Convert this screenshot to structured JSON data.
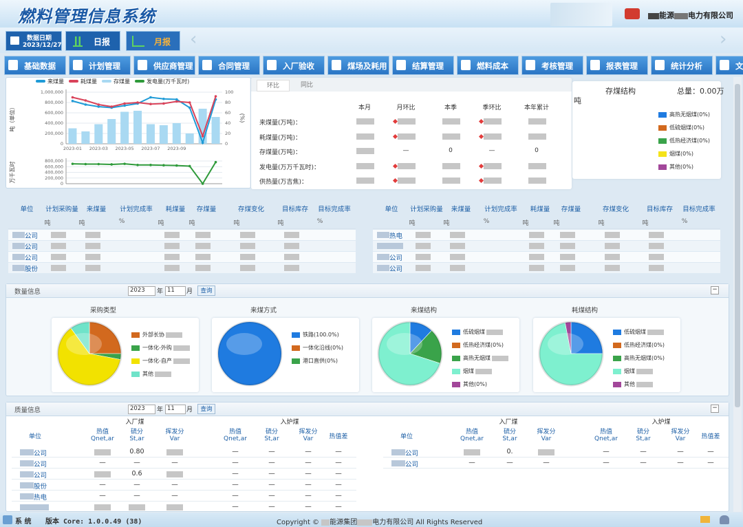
{
  "header": {
    "title": "燃料管理信息系统",
    "company_prefix": "能源",
    "company_suffix": "电力有限公司"
  },
  "toolbar": {
    "date_label": "数据日期",
    "date": "2023/12/27",
    "daily": "日报",
    "monthly": "月报"
  },
  "nav": [
    "基础数据",
    "计划管理",
    "供应商管理",
    "合同管理",
    "入厂验收",
    "煤场及耗用",
    "结算管理",
    "燃料成本",
    "考核管理",
    "报表管理",
    "统计分析",
    "文"
  ],
  "compare": {
    "tabs": [
      "环比",
      "同比"
    ],
    "columns": [
      "本月",
      "月环比",
      "本季",
      "季环比",
      "本年累计"
    ],
    "rows": [
      {
        "label": "来煤量(万吨)：",
        "cells": [
          null,
          null,
          null,
          null,
          null
        ]
      },
      {
        "label": "耗煤量(万吨)：",
        "cells": [
          null,
          null,
          null,
          null,
          null
        ]
      },
      {
        "label": "存煤量(万吨)：",
        "cells": [
          null,
          "—",
          "0",
          "—",
          "0"
        ]
      },
      {
        "label": "发电量(万万千瓦时)：",
        "cells": [
          null,
          null,
          null,
          null,
          null
        ]
      },
      {
        "label": "供热量(万吉焦)：",
        "cells": [
          null,
          null,
          null,
          null,
          null
        ]
      }
    ]
  },
  "stock": {
    "title": "存煤结构",
    "total": "总量：0.00万",
    "unit": "吨"
  },
  "plan": {
    "columns": [
      "单位",
      "计划采购量",
      "来煤量",
      "计划完成率",
      "耗煤量",
      "存煤量",
      "存煤变化",
      "目标库存",
      "目标完成率"
    ],
    "units": [
      "吨",
      "吨",
      "%",
      "吨",
      "吨",
      "吨",
      "吨",
      "%"
    ],
    "left_rows": [
      {
        "unit": "公司",
        "cells": [
          null,
          null,
          null,
          null,
          null,
          null,
          null,
          null
        ]
      },
      {
        "unit": "公司",
        "cells": [
          null,
          null,
          null,
          null,
          null,
          null,
          null,
          null
        ]
      },
      {
        "unit": "公司",
        "cells": [
          null,
          null,
          null,
          null,
          null,
          null,
          null,
          null
        ]
      },
      {
        "unit": "股份",
        "cells": [
          null,
          null,
          null,
          null,
          null,
          null,
          null,
          null
        ]
      }
    ],
    "right_rows": [
      {
        "unit": "热电",
        "cells": [
          null,
          null,
          null,
          null,
          null,
          null,
          null,
          null
        ]
      },
      {
        "unit": null,
        "cells": [
          null,
          null,
          null,
          null,
          null,
          null,
          null,
          null
        ]
      },
      {
        "unit": "公司",
        "cells": [
          null,
          null,
          null,
          null,
          null,
          null,
          null,
          null
        ]
      },
      {
        "unit": "公司",
        "cells": [
          null,
          null,
          null,
          null,
          null,
          null,
          null,
          null
        ]
      }
    ]
  },
  "quantity": {
    "title": "数量信息",
    "year": "2023",
    "year_unit": "年",
    "month": "11",
    "month_unit": "月",
    "query": "查询"
  },
  "quality": {
    "title": "质量信息",
    "year": "2023",
    "year_unit": "年",
    "month": "11",
    "month_unit": "月",
    "query": "查询",
    "unit_header": "单位",
    "groups": [
      "入厂煤",
      "入炉煤"
    ],
    "columns": [
      [
        "热值",
        "Qnet,ar"
      ],
      [
        "硫分",
        "St,ar"
      ],
      [
        "挥发分",
        "Var"
      ],
      [
        "热值",
        "Qnet,ar"
      ],
      [
        "硫分",
        "St,ar"
      ],
      [
        "挥发分",
        "Var"
      ],
      [
        "热值差"
      ]
    ],
    "left_rows": [
      {
        "unit": "公司",
        "cells": [
          null,
          "0.80",
          null,
          "—",
          "—",
          "—",
          "—"
        ]
      },
      {
        "unit": "公司",
        "cells": [
          "—",
          "—",
          "—",
          "—",
          "—",
          "—",
          "—"
        ]
      },
      {
        "unit": "公司",
        "cells": [
          null,
          "0.6",
          null,
          "—",
          "—",
          "—",
          "—"
        ]
      },
      {
        "unit": "股份",
        "cells": [
          "—",
          "—",
          "—",
          "—",
          "—",
          "—",
          "—"
        ]
      },
      {
        "unit": "热电",
        "cells": [
          "—",
          "—",
          "—",
          "—",
          "—",
          "—",
          "—"
        ]
      },
      {
        "unit": null,
        "cells": [
          null,
          null,
          null,
          "—",
          "—",
          "—",
          "—"
        ]
      }
    ],
    "right_rows": [
      {
        "unit": "公司",
        "cells": [
          null,
          "0.",
          null,
          "—",
          "—",
          "—",
          "—"
        ]
      },
      {
        "unit": "公司",
        "cells": [
          "—",
          "—",
          "—",
          "—",
          "—",
          "—",
          "—"
        ]
      }
    ]
  },
  "footer": {
    "system": "系 统",
    "version": "版本 Core: 1.0.0.49 (38)",
    "copyright": [
      "Copyright ©",
      "能源集团",
      "电力有限公司 All Rights Reserved"
    ]
  },
  "chart_data": [
    {
      "type": "line",
      "categories": [
        "2023-01",
        null,
        "2023-03",
        null,
        "2023-05",
        null,
        "2023-07",
        null,
        "2023-09",
        null,
        null,
        null
      ],
      "ylabel": "吨（单位）",
      "ylim": [
        0,
        1000000
      ],
      "yticks": [
        0,
        {
          "value": 200000,
          "label": "200,000"
        },
        {
          "value": 400000,
          "label": "400,000"
        },
        {
          "value": 600000,
          "label": "600,000"
        },
        {
          "value": 800000,
          "label": "800,000"
        },
        {
          "value": 1000000,
          "label": "1,000,000"
        }
      ],
      "y2label": "(%)",
      "y2lim": [
        0,
        100
      ],
      "y2ticks": [
        0,
        20,
        40,
        60,
        80,
        100
      ],
      "series": [
        {
          "name": "来煤量",
          "color": "#1f9bd7",
          "type": "line",
          "values": [
            830000,
            760000,
            720000,
            700000,
            740000,
            780000,
            900000,
            870000,
            860000,
            700000,
            20000,
            860000
          ]
        },
        {
          "name": "耗煤量",
          "color": "#d9435a",
          "type": "line",
          "values": [
            900000,
            840000,
            760000,
            720000,
            780000,
            800000,
            770000,
            780000,
            820000,
            800000,
            150000,
            920000
          ]
        },
        {
          "name": "存煤量",
          "color": "#a9d9f2",
          "type": "bar",
          "values": [
            300000,
            240000,
            380000,
            480000,
            620000,
            640000,
            380000,
            360000,
            400000,
            200000,
            680000,
            520000
          ]
        }
      ]
    },
    {
      "type": "line",
      "ylabel": "万千瓦时",
      "ylim": [
        0,
        800000
      ],
      "yticks": [
        0,
        {
          "value": 200000,
          "label": "200,000"
        },
        {
          "value": 400000,
          "label": "400,000"
        },
        {
          "value": 600000,
          "label": "600,000"
        },
        {
          "value": 800000,
          "label": "800,000"
        }
      ],
      "series": [
        {
          "name": "发电量(万千瓦时)",
          "color": "#2e9a3a",
          "type": "line",
          "values": [
            700000,
            690000,
            690000,
            680000,
            700000,
            660000,
            660000,
            650000,
            640000,
            620000,
            0,
            760000
          ]
        }
      ]
    },
    {
      "type": "pie",
      "title": "采购类型",
      "categories": [
        "外部长协",
        "一体化-外购",
        "一体化-自产",
        "其他"
      ],
      "colors": [
        "#d2691e",
        "#3aa34a",
        "#f2e200",
        "#6fe3c9"
      ],
      "values": [
        25,
        3,
        62,
        10
      ]
    },
    {
      "type": "pie",
      "title": "来煤方式",
      "categories": [
        "铁路",
        "一体化沿线",
        "港口直供"
      ],
      "colors": [
        "#1f7be0",
        "#d2691e",
        "#3aa34a"
      ],
      "values": [
        100,
        0,
        0
      ],
      "value_labels": [
        "(100.0%)",
        "(0%)",
        "(0%)"
      ]
    },
    {
      "type": "pie",
      "title": "来煤结构",
      "categories": [
        "低硫烟煤",
        "低热经济煤",
        "高热无烟煤",
        "烟煤",
        "其他"
      ],
      "colors": [
        "#1f7be0",
        "#d2691e",
        "#3aa34a",
        "#7ef0cf",
        "#a2479a"
      ],
      "values": [
        12,
        0,
        18,
        70,
        0
      ],
      "value_labels": [
        null,
        "(0%)",
        null,
        null,
        "(0%)"
      ]
    },
    {
      "type": "pie",
      "title": "耗煤结构",
      "categories": [
        "低硫烟煤",
        "低热经济煤",
        "高热无烟煤",
        "烟煤",
        "其他"
      ],
      "colors": [
        "#1f7be0",
        "#d2691e",
        "#3aa34a",
        "#7ef0cf",
        "#a2479a"
      ],
      "values": [
        25,
        0,
        0,
        72,
        3
      ],
      "value_labels": [
        null,
        "(0%)",
        "(0%)",
        null,
        null
      ]
    },
    {
      "type": "pie",
      "title": "存煤结构",
      "categories": [
        "高热无烟煤",
        "低硫烟煤",
        "低热经济煤",
        "烟煤",
        "其他"
      ],
      "colors": [
        "#1f7be0",
        "#d2691e",
        "#3aa34a",
        "#f4e31a",
        "#a2479a"
      ],
      "values": [
        0,
        0,
        0,
        0,
        0
      ],
      "value_labels": [
        "(0%)",
        "(0%)",
        "(0%)",
        "(0%)",
        "(0%)"
      ]
    }
  ]
}
